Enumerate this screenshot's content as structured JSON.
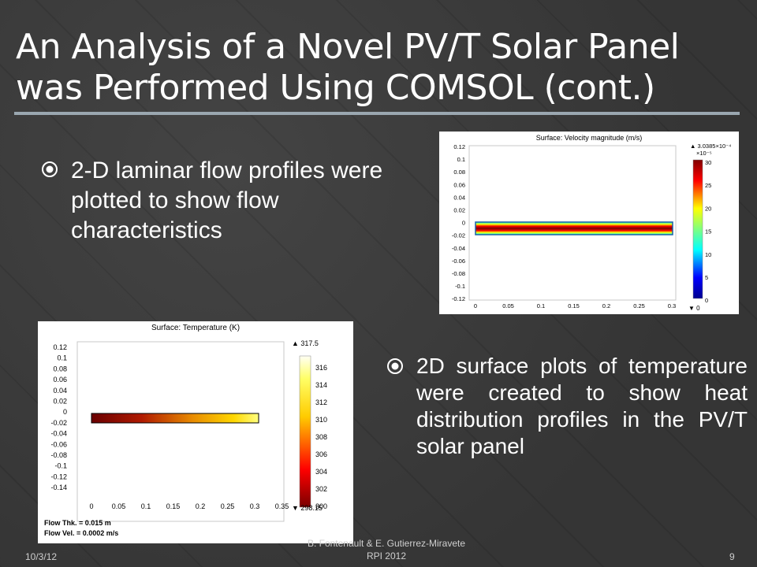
{
  "slide": {
    "title_line1": "An Analysis of a Novel PV/T Solar Panel",
    "title_line2": "was Performed Using COMSOL (cont.)",
    "bullet1": "2-D laminar flow profiles were plotted to show flow characteristics",
    "bullet2": "2D surface plots of temperature were created to show heat distribution profiles in the PV/T solar panel",
    "bullet_icon": "circled-dot-icon"
  },
  "velocity_plot": {
    "title": "Surface: Velocity magnitude (m/s)",
    "y_ticks": [
      "0.12",
      "0.1",
      "0.08",
      "0.06",
      "0.04",
      "0.02",
      "0",
      "-0.02",
      "-0.04",
      "-0.06",
      "-0.08",
      "-0.1",
      "-0.12"
    ],
    "x_ticks": [
      "0",
      "0.05",
      "0.1",
      "0.15",
      "0.2",
      "0.25",
      "0.3"
    ],
    "max_label": "▲ 3.0385×10⁻⁴",
    "scale_label": "×10⁻⁵",
    "colorbar_ticks": [
      "30",
      "25",
      "20",
      "15",
      "10",
      "5",
      "0"
    ],
    "min_label": "▼ 0"
  },
  "temperature_plot": {
    "title": "Surface: Temperature (K)",
    "y_ticks": [
      "0.12",
      "0.1",
      "0.08",
      "0.06",
      "0.04",
      "0.02",
      "0",
      "-0.02",
      "-0.04",
      "-0.06",
      "-0.08",
      "-0.1",
      "-0.12",
      "-0.14"
    ],
    "x_ticks": [
      "0",
      "0.05",
      "0.1",
      "0.15",
      "0.2",
      "0.25",
      "0.3",
      "0.35"
    ],
    "max_label": "▲ 317.5",
    "colorbar_ticks": [
      "316",
      "314",
      "312",
      "310",
      "308",
      "306",
      "304",
      "302",
      "300"
    ],
    "min_label": "▼ 298.15",
    "note1": "Flow Thk. = 0.015 m",
    "note2": "Flow Vel. = 0.0002 m/s"
  },
  "footer": {
    "date": "10/3/12",
    "authors": "B. Fontenault & E. Gutierrez-Miravete",
    "venue": "RPI 2012",
    "page": "9"
  },
  "colors": {
    "background": "#3a3a3a",
    "rule": "#9aa7b0",
    "text": "#ffffff"
  }
}
